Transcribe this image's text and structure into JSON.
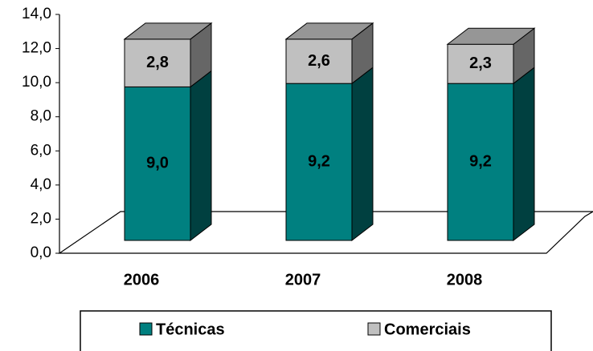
{
  "chart_data": {
    "type": "bar3d-stacked",
    "categories": [
      "2006",
      "2007",
      "2008"
    ],
    "series": [
      {
        "name": "Técnicas",
        "color": "#008080",
        "values": [
          9.0,
          9.2,
          9.2
        ],
        "value_labels": [
          "9,0",
          "9,2",
          "9,2"
        ]
      },
      {
        "name": "Comerciais",
        "color": "#c0c0c0",
        "values": [
          2.8,
          2.6,
          2.3
        ],
        "value_labels": [
          "2,8",
          "2,6",
          "2,3"
        ]
      }
    ],
    "ylim": [
      0,
      14
    ],
    "yticks": [
      {
        "value": 0,
        "label": "0,0"
      },
      {
        "value": 2,
        "label": "2,0"
      },
      {
        "value": 4,
        "label": "4,0"
      },
      {
        "value": 6,
        "label": "6,0"
      },
      {
        "value": 8,
        "label": "8,0"
      },
      {
        "value": 10,
        "label": "10,0"
      },
      {
        "value": 12,
        "label": "12,0"
      },
      {
        "value": 14,
        "label": "14,0"
      }
    ],
    "legend": "bottom"
  }
}
